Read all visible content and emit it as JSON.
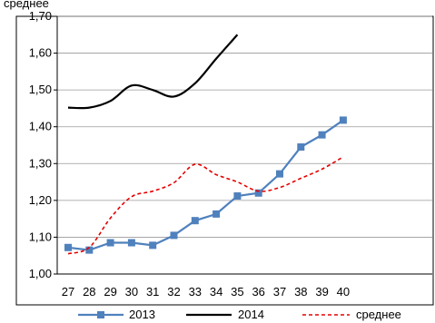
{
  "chart_data": {
    "type": "line",
    "title": "среднее",
    "x": [
      27,
      28,
      29,
      30,
      31,
      32,
      33,
      34,
      35,
      36,
      37,
      38,
      39,
      40
    ],
    "ylim": [
      1.0,
      1.7
    ],
    "yticks": [
      "1,00",
      "1,10",
      "1,20",
      "1,30",
      "1,40",
      "1,50",
      "1,60",
      "1,70"
    ],
    "grid": "horizontal",
    "legend_position": "bottom",
    "series": [
      {
        "name": "2013",
        "color": "#4f81bd",
        "style": "solid-square-markers",
        "values": [
          1.072,
          1.065,
          1.085,
          1.085,
          1.078,
          1.105,
          1.145,
          1.163,
          1.212,
          1.22,
          1.272,
          1.345,
          1.378,
          1.418
        ]
      },
      {
        "name": "2014",
        "color": "#000000",
        "style": "solid",
        "values": [
          1.452,
          1.452,
          1.47,
          1.512,
          1.5,
          1.482,
          1.518,
          1.585,
          1.65,
          null,
          null,
          null,
          null,
          null
        ]
      },
      {
        "name": "среднее",
        "color": "#e60000",
        "style": "dashed",
        "values": [
          1.055,
          1.072,
          1.152,
          1.21,
          1.225,
          1.248,
          1.298,
          1.27,
          1.25,
          1.225,
          1.235,
          1.26,
          1.285,
          1.318
        ]
      }
    ]
  }
}
